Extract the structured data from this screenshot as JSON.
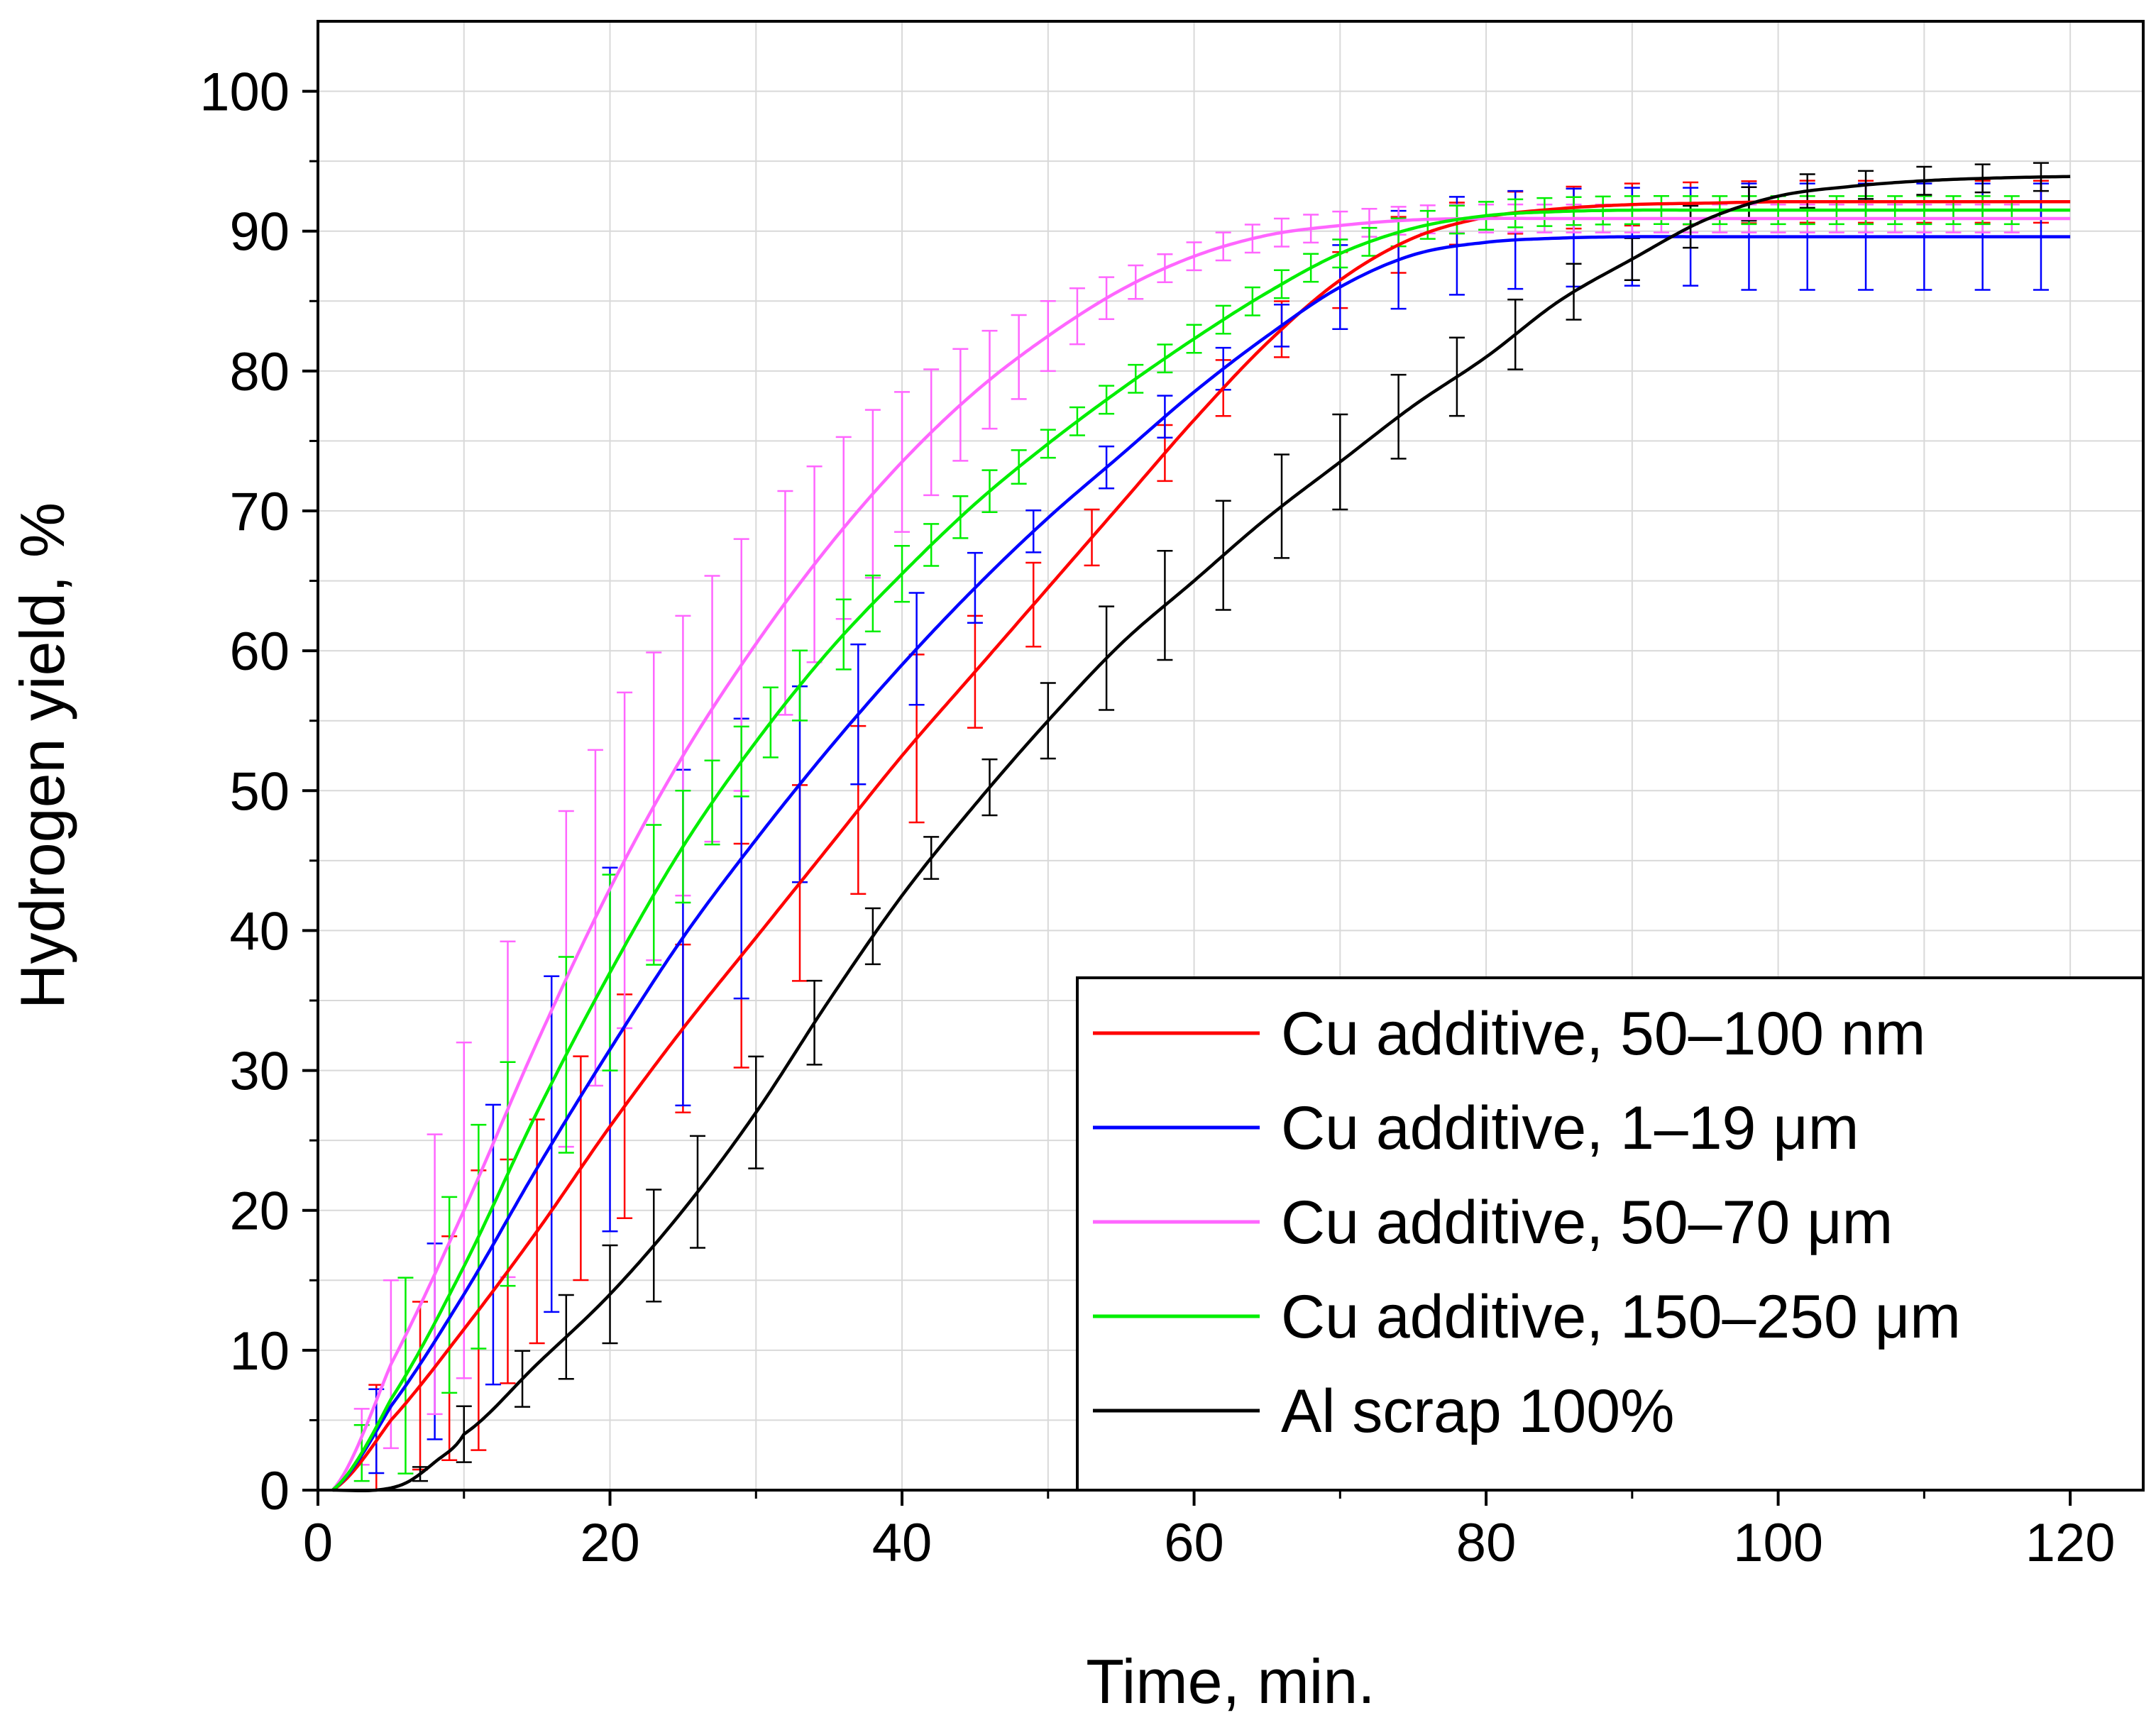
{
  "chart_data": {
    "type": "line",
    "title": "",
    "xlabel": "Time, min.",
    "ylabel": "Hydrogen yield, %",
    "xlim": [
      0,
      125
    ],
    "ylim": [
      0,
      105
    ],
    "xticks": [
      0,
      20,
      40,
      60,
      80,
      100,
      120
    ],
    "yticks": [
      0,
      10,
      20,
      30,
      40,
      50,
      60,
      70,
      80,
      90,
      100
    ],
    "grid": true,
    "legend_position": "bottom-right",
    "series": [
      {
        "name": "Cu additive, 50–100 nm",
        "color": "#ff0000",
        "x": [
          1,
          5,
          10,
          15,
          20,
          25,
          30,
          35,
          40,
          45,
          50,
          55,
          60,
          65,
          70,
          75,
          80,
          85,
          90,
          95,
          100,
          105,
          110,
          115,
          120
        ],
        "y": [
          0,
          5,
          11.5,
          18.5,
          26,
          33,
          39.5,
          46,
          52.5,
          58.5,
          64.5,
          70.5,
          76.5,
          82,
          86.5,
          89.5,
          91,
          91.6,
          91.9,
          92,
          92.1,
          92.1,
          92.1,
          92.1,
          92.1
        ],
        "error_x": [
          4,
          7,
          9,
          11,
          13,
          15,
          18,
          21,
          25,
          29,
          33,
          37,
          41,
          45,
          49,
          53,
          58,
          62,
          66,
          70,
          74,
          78,
          82,
          86,
          90,
          94,
          98,
          102,
          106,
          110,
          114,
          118
        ],
        "error_y": [
          4,
          6,
          8,
          10,
          8,
          8,
          8,
          8,
          6,
          8,
          7,
          6,
          6,
          4,
          3,
          2,
          2,
          2,
          2,
          2,
          2,
          1.5,
          1.5,
          1.5,
          1.5,
          1.5,
          1.5,
          1.5,
          1.5,
          1.5,
          1.5,
          1.5
        ]
      },
      {
        "name": "Cu additive, 1–19 μm",
        "color": "#0000ff",
        "x": [
          1,
          5,
          10,
          15,
          20,
          25,
          30,
          35,
          40,
          45,
          50,
          55,
          60,
          65,
          70,
          75,
          80,
          85,
          90,
          95,
          100,
          105,
          110,
          115,
          120
        ],
        "y": [
          0,
          6,
          14,
          23,
          31.5,
          39.5,
          46.5,
          53,
          59,
          64.5,
          69.5,
          74,
          78.5,
          82.5,
          86,
          88.3,
          89.2,
          89.5,
          89.6,
          89.6,
          89.6,
          89.6,
          89.6,
          89.6,
          89.6
        ],
        "error_x": [
          4,
          8,
          12,
          16,
          20,
          25,
          29,
          33,
          37,
          41,
          45,
          49,
          54,
          58,
          62,
          66,
          70,
          74,
          78,
          82,
          86,
          90,
          94,
          98,
          102,
          106,
          110,
          114,
          118
        ],
        "error_y": [
          3,
          7,
          10,
          12,
          13,
          12,
          10,
          7,
          5,
          4,
          2.5,
          1.5,
          1.5,
          1.5,
          1.5,
          1.5,
          3,
          3.5,
          3.5,
          3.5,
          3.5,
          3.5,
          3.5,
          3.8,
          3.8,
          3.8,
          3.8,
          3.8,
          3.8
        ]
      },
      {
        "name": "Cu additive, 50–70 μm",
        "color": "#ff66ff",
        "x": [
          1,
          5,
          10,
          15,
          20,
          25,
          30,
          35,
          40,
          45,
          50,
          55,
          60,
          65,
          70,
          75,
          80,
          85,
          90,
          95,
          100,
          105,
          110,
          115,
          120
        ],
        "y": [
          0,
          9,
          20,
          32,
          43,
          52.5,
          60.5,
          67.5,
          73.5,
          78.5,
          82.5,
          85.8,
          88.2,
          89.7,
          90.4,
          90.8,
          90.9,
          90.9,
          90.9,
          90.9,
          90.9,
          90.9,
          90.9,
          90.9,
          90.9
        ],
        "error_x": [
          3,
          5,
          8,
          10,
          13,
          17,
          19,
          21,
          23,
          25,
          27,
          29,
          32,
          34,
          36,
          38,
          40,
          42,
          44,
          46,
          48,
          50,
          52,
          54,
          56,
          58,
          60,
          62,
          64,
          66,
          68,
          70,
          72,
          74,
          76,
          78,
          80,
          82,
          84,
          86,
          88,
          90,
          92,
          94,
          96,
          98,
          100,
          102,
          104,
          106,
          108,
          110,
          112,
          114,
          116
        ],
        "error_y": [
          2,
          6,
          10,
          12,
          12,
          12,
          12,
          12,
          11,
          10,
          9.5,
          9,
          8,
          7,
          6.5,
          6,
          5,
          4.5,
          4,
          3.5,
          3,
          2.5,
          2,
          1.5,
          1.2,
          1,
          1,
          1,
          1,
          1,
          1,
          1,
          1,
          1,
          1,
          1,
          1,
          1,
          1,
          1,
          1,
          1,
          1,
          1,
          1,
          1,
          1,
          1,
          1,
          1,
          1,
          1,
          1,
          1,
          1
        ]
      },
      {
        "name": "Cu additive, 150–250 μm",
        "color": "#00ee00",
        "x": [
          1,
          5,
          10,
          15,
          20,
          25,
          30,
          35,
          40,
          45,
          50,
          55,
          60,
          65,
          70,
          75,
          80,
          85,
          90,
          95,
          100,
          105,
          110,
          115,
          120
        ],
        "y": [
          0,
          6.5,
          16,
          27,
          37,
          46,
          53.5,
          60,
          65.5,
          70.5,
          74.8,
          78.7,
          82.3,
          85.6,
          88.4,
          90.2,
          91.1,
          91.4,
          91.5,
          91.5,
          91.5,
          91.5,
          91.5,
          91.5,
          91.5
        ],
        "error_x": [
          3,
          6,
          9,
          11,
          13,
          17,
          20,
          23,
          25,
          27,
          29,
          31,
          33,
          36,
          38,
          40,
          42,
          44,
          46,
          48,
          50,
          52,
          54,
          56,
          58,
          60,
          62,
          64,
          66,
          68,
          70,
          72,
          74,
          76,
          78,
          80,
          82,
          84,
          86,
          88,
          90,
          92,
          94,
          96,
          98,
          100,
          102,
          104,
          106,
          108,
          110,
          112,
          114,
          116
        ],
        "error_y": [
          2,
          7,
          7,
          8,
          8,
          7,
          7,
          5,
          4,
          3,
          2.5,
          2.5,
          2.5,
          2.5,
          2,
          2,
          1.5,
          1.5,
          1.5,
          1.2,
          1,
          1,
          1,
          1,
          1,
          1,
          1,
          1,
          1,
          1,
          1,
          1,
          1,
          1,
          1,
          1,
          1,
          1,
          1,
          1,
          1,
          1,
          1,
          1,
          1,
          1,
          1,
          1,
          1,
          1,
          1,
          1,
          1,
          1
        ]
      },
      {
        "name": "Al scrap 100%",
        "color": "#000000",
        "x": [
          1,
          4,
          6,
          8,
          10,
          15,
          20,
          25,
          30,
          35,
          40,
          45,
          50,
          55,
          60,
          65,
          70,
          75,
          80,
          85,
          90,
          95,
          100,
          105,
          110,
          115,
          120
        ],
        "y": [
          0,
          0,
          0.5,
          2,
          4,
          9,
          14,
          20,
          27,
          35,
          42.5,
          49,
          55,
          60.5,
          65,
          69.5,
          73.5,
          77.5,
          81,
          85,
          88,
          90.8,
          92.5,
          93.2,
          93.6,
          93.8,
          93.9
        ],
        "error_x": [
          7,
          10,
          14,
          17,
          20,
          23,
          26,
          30,
          34,
          38,
          42,
          46,
          50,
          54,
          58,
          62,
          66,
          70,
          74,
          78,
          82,
          86,
          90,
          94,
          98,
          102,
          106,
          110,
          114,
          118
        ],
        "error_y": [
          0.5,
          2,
          2,
          3,
          3.5,
          4,
          4,
          4,
          3,
          2,
          1.5,
          2,
          2.7,
          3.7,
          3.9,
          3.9,
          3.7,
          3.4,
          3,
          2.8,
          2.5,
          2,
          1.5,
          1.5,
          1.2,
          1.2,
          1,
          1,
          1,
          1
        ]
      }
    ]
  }
}
